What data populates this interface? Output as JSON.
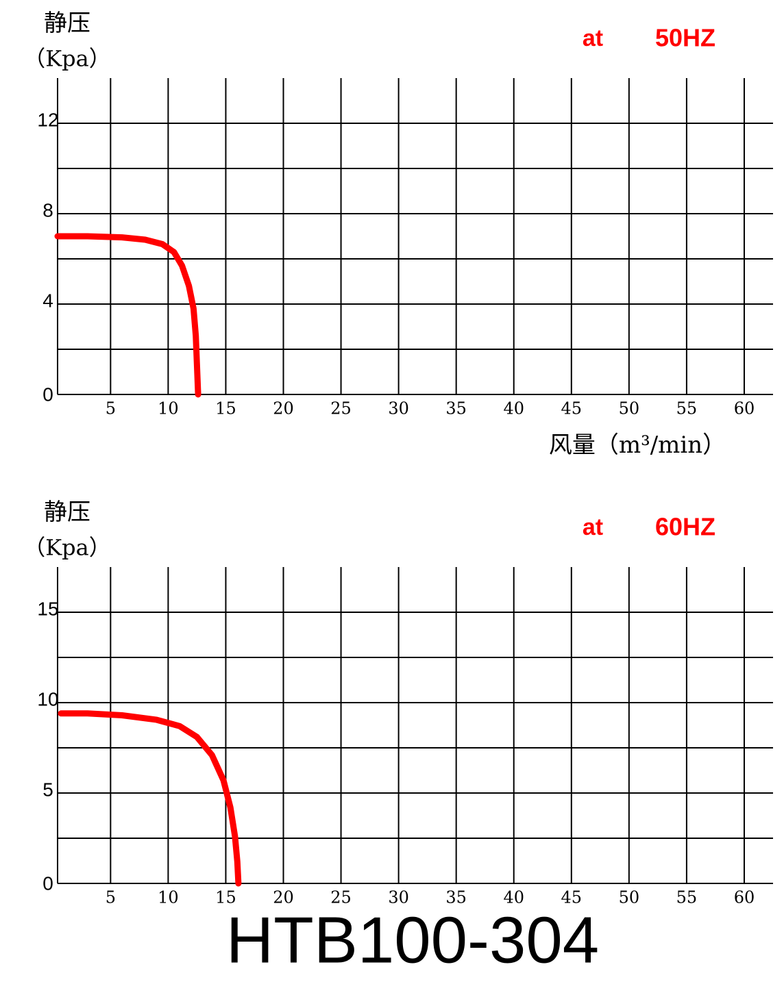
{
  "chart_data": [
    {
      "type": "line",
      "y_label": "静压",
      "y_unit": "（Kpa）",
      "annotation": "at",
      "frequency": "50HZ",
      "x_label": "风量（m³/min）",
      "x": [
        0.4,
        3,
        6,
        8,
        9.5,
        10.5,
        11.2,
        11.8,
        12.2,
        12.4,
        12.5,
        12.6
      ],
      "values": [
        7.0,
        7.0,
        6.95,
        6.85,
        6.65,
        6.3,
        5.7,
        4.8,
        3.8,
        2.6,
        1.3,
        0
      ],
      "color": "#ff0000",
      "xlim": [
        0.4,
        62.5
      ],
      "ylim": [
        0,
        14
      ],
      "xticks": [
        5,
        10,
        15,
        20,
        25,
        30,
        35,
        40,
        45,
        50,
        55,
        60
      ],
      "yticks": [
        0,
        4,
        8,
        12
      ],
      "grid": true
    },
    {
      "type": "line",
      "y_label": "静压",
      "y_unit": "（Kpa）",
      "annotation": "at",
      "frequency": "60HZ",
      "x": [
        0.7,
        3,
        6,
        9,
        11,
        12.5,
        13.8,
        14.8,
        15.4,
        15.8,
        16.0,
        16.1
      ],
      "values": [
        9.4,
        9.4,
        9.3,
        9.05,
        8.7,
        8.1,
        7.1,
        5.7,
        4.2,
        2.6,
        1.2,
        0
      ],
      "color": "#ff0000",
      "xlim": [
        0.4,
        62.5
      ],
      "ylim": [
        0,
        17.5
      ],
      "xticks": [
        5,
        10,
        15,
        20,
        25,
        30,
        35,
        40,
        45,
        50,
        55,
        60
      ],
      "yticks": [
        0,
        5,
        10,
        15
      ],
      "grid": true
    }
  ],
  "model": "HTB100-304"
}
